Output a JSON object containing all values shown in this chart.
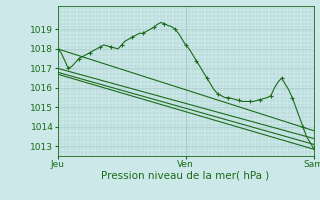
{
  "background_color": "#cce8e8",
  "grid_color": "#aacccc",
  "line_color": "#1a6b1a",
  "xlabel": "Pression niveau de la mer( hPa )",
  "xlabel_fontsize": 7.5,
  "xtick_labels": [
    "Jeu",
    "Ven",
    "Sam"
  ],
  "xtick_positions": [
    0,
    36,
    72
  ],
  "ylim": [
    1012.5,
    1020.2
  ],
  "ytick_values": [
    1013,
    1014,
    1015,
    1016,
    1017,
    1018,
    1019
  ],
  "ytick_fontsize": 6.5,
  "xtick_fontsize": 6.5,
  "series_main": {
    "x": [
      0,
      1,
      2,
      3,
      4,
      5,
      6,
      7,
      8,
      9,
      10,
      11,
      12,
      13,
      14,
      15,
      16,
      17,
      18,
      19,
      20,
      21,
      22,
      23,
      24,
      25,
      26,
      27,
      28,
      29,
      30,
      31,
      32,
      33,
      34,
      35,
      36,
      37,
      38,
      39,
      40,
      41,
      42,
      43,
      44,
      45,
      46,
      47,
      48,
      49,
      50,
      51,
      52,
      53,
      54,
      55,
      56,
      57,
      58,
      59,
      60,
      61,
      62,
      63,
      64,
      65,
      66,
      67,
      68,
      69,
      70,
      71,
      72
    ],
    "y": [
      1018.0,
      1017.8,
      1017.4,
      1017.0,
      1017.1,
      1017.3,
      1017.5,
      1017.6,
      1017.7,
      1017.8,
      1017.9,
      1018.0,
      1018.1,
      1018.2,
      1018.15,
      1018.1,
      1018.05,
      1018.0,
      1018.2,
      1018.4,
      1018.5,
      1018.6,
      1018.7,
      1018.8,
      1018.8,
      1018.9,
      1019.0,
      1019.1,
      1019.25,
      1019.35,
      1019.3,
      1019.2,
      1019.15,
      1019.0,
      1018.8,
      1018.5,
      1018.2,
      1018.0,
      1017.7,
      1017.4,
      1017.1,
      1016.8,
      1016.5,
      1016.2,
      1015.9,
      1015.7,
      1015.6,
      1015.5,
      1015.5,
      1015.45,
      1015.4,
      1015.35,
      1015.3,
      1015.3,
      1015.3,
      1015.3,
      1015.35,
      1015.4,
      1015.45,
      1015.5,
      1015.6,
      1016.0,
      1016.3,
      1016.5,
      1016.2,
      1015.9,
      1015.5,
      1015.0,
      1014.5,
      1014.0,
      1013.5,
      1013.2,
      1012.9
    ]
  },
  "trend_lines": [
    {
      "x": [
        0,
        72
      ],
      "y": [
        1018.0,
        1013.8
      ]
    },
    {
      "x": [
        0,
        72
      ],
      "y": [
        1017.0,
        1013.4
      ]
    },
    {
      "x": [
        0,
        72
      ],
      "y": [
        1016.8,
        1013.1
      ]
    },
    {
      "x": [
        0,
        72
      ],
      "y": [
        1016.7,
        1012.85
      ]
    }
  ]
}
